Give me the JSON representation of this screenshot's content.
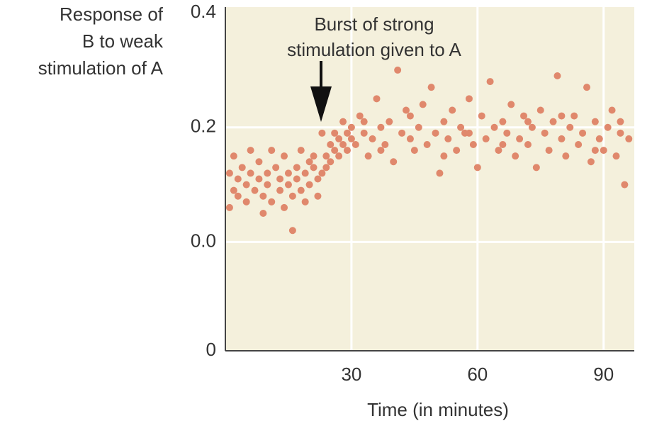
{
  "chart_data": {
    "type": "scatter",
    "ylabel": [
      "Response of",
      "B to weak",
      "stimulation of A"
    ],
    "xlabel": "Time (in minutes)",
    "annotation": [
      "Burst of strong",
      "stimulation given to A"
    ],
    "color": "#e0886c",
    "grid": true,
    "xlim": [
      0,
      97.3
    ],
    "xticks": [
      30,
      60,
      90
    ],
    "ylim": [
      -0.19,
      0.41
    ],
    "yticks": [
      0.4,
      0.2,
      {
        "value": 0,
        "label": "0.0"
      },
      {
        "value": -0.19,
        "label": "0"
      }
    ],
    "x": [
      1,
      1,
      2,
      2,
      3,
      3,
      4,
      5,
      5,
      6,
      6,
      7,
      8,
      8,
      9,
      9,
      10,
      10,
      11,
      11,
      12,
      13,
      13,
      14,
      14,
      15,
      15,
      16,
      16,
      17,
      17,
      18,
      18,
      19,
      19,
      20,
      20,
      21,
      21,
      22,
      22,
      23,
      23,
      24,
      24,
      25,
      25,
      26,
      26,
      27,
      27,
      28,
      28,
      29,
      29,
      30,
      30,
      31,
      32,
      33,
      34,
      35,
      36,
      37,
      38,
      39,
      40,
      41,
      42,
      43,
      44,
      45,
      46,
      47,
      48,
      49,
      50,
      51,
      52,
      53,
      54,
      55,
      56,
      57,
      58,
      59,
      60,
      61,
      62,
      63,
      64,
      65,
      66,
      67,
      68,
      69,
      70,
      71,
      72,
      73,
      74,
      75,
      76,
      77,
      78,
      79,
      80,
      81,
      82,
      83,
      84,
      85,
      86,
      87,
      88,
      89,
      90,
      91,
      92,
      93,
      94,
      95,
      96,
      33,
      37,
      44,
      52,
      58,
      66,
      72,
      80,
      88,
      94
    ],
    "values": [
      0.12,
      0.06,
      0.09,
      0.15,
      0.11,
      0.08,
      0.13,
      0.1,
      0.07,
      0.16,
      0.12,
      0.09,
      0.11,
      0.14,
      0.08,
      0.05,
      0.12,
      0.1,
      0.16,
      0.07,
      0.13,
      0.09,
      0.11,
      0.06,
      0.15,
      0.1,
      0.12,
      0.08,
      0.02,
      0.13,
      0.11,
      0.09,
      0.16,
      0.12,
      0.07,
      0.14,
      0.1,
      0.13,
      0.15,
      0.08,
      0.11,
      0.12,
      0.19,
      0.15,
      0.13,
      0.17,
      0.14,
      0.16,
      0.19,
      0.18,
      0.15,
      0.21,
      0.17,
      0.19,
      0.16,
      0.2,
      0.18,
      0.17,
      0.22,
      0.19,
      0.15,
      0.18,
      0.25,
      0.2,
      0.17,
      0.21,
      0.14,
      0.3,
      0.19,
      0.23,
      0.18,
      0.16,
      0.2,
      0.24,
      0.17,
      0.27,
      0.19,
      0.12,
      0.21,
      0.18,
      0.23,
      0.16,
      0.2,
      0.19,
      0.25,
      0.17,
      0.13,
      0.22,
      0.18,
      0.28,
      0.2,
      0.16,
      0.21,
      0.19,
      0.24,
      0.15,
      0.18,
      0.22,
      0.17,
      0.2,
      0.13,
      0.23,
      0.19,
      0.16,
      0.21,
      0.29,
      0.18,
      0.15,
      0.2,
      0.22,
      0.17,
      0.19,
      0.27,
      0.14,
      0.21,
      0.18,
      0.16,
      0.2,
      0.23,
      0.15,
      0.19,
      0.1,
      0.18,
      0.21,
      0.16,
      0.22,
      0.15,
      0.19,
      0.17,
      0.21,
      0.22,
      0.16,
      0.21
    ]
  }
}
